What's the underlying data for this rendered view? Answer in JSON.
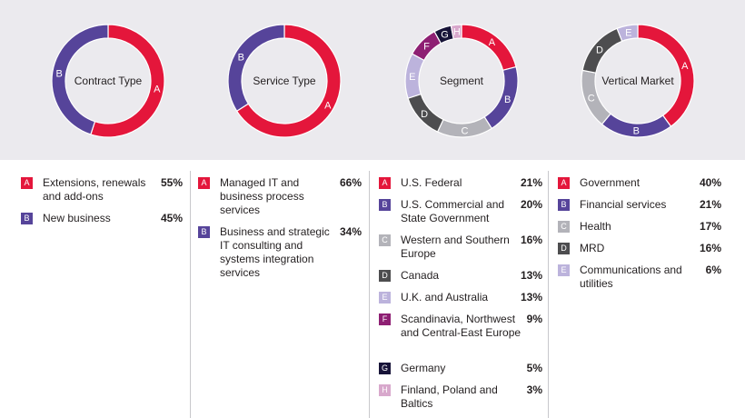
{
  "colors": {
    "A": "#e4163b",
    "B": "#56449a",
    "C": "#b3b3b9",
    "D": "#4d4d4f",
    "E": "#bcb3dc",
    "F": "#8e1f73",
    "G": "#171338",
    "H": "#d8a8cc"
  },
  "chart_data": [
    {
      "type": "pie",
      "title": "Contract Type",
      "slices": [
        {
          "code": "A",
          "label": "Extensions, renewals and add-ons",
          "value": 55,
          "pct": "55%"
        },
        {
          "code": "B",
          "label": "New business",
          "value": 45,
          "pct": "45%"
        }
      ]
    },
    {
      "type": "pie",
      "title": "Service Type",
      "slices": [
        {
          "code": "A",
          "label": "Managed IT and business process services",
          "value": 66,
          "pct": "66%"
        },
        {
          "code": "B",
          "label": "Business and strategic IT consulting and systems integration services",
          "value": 34,
          "pct": "34%"
        }
      ]
    },
    {
      "type": "pie",
      "title": "Segment",
      "slices": [
        {
          "code": "A",
          "label": "U.S. Federal",
          "value": 21,
          "pct": "21%"
        },
        {
          "code": "B",
          "label": "U.S. Commercial and State Government",
          "value": 20,
          "pct": "20%"
        },
        {
          "code": "C",
          "label": "Western and Southern Europe",
          "value": 16,
          "pct": "16%"
        },
        {
          "code": "D",
          "label": "Canada",
          "value": 13,
          "pct": "13%"
        },
        {
          "code": "E",
          "label": "U.K. and Australia",
          "value": 13,
          "pct": "13%"
        },
        {
          "code": "F",
          "label": "Scandinavia, Northwest and Central-East Europe",
          "value": 9,
          "pct": "9%"
        },
        {
          "code": "G",
          "label": "Germany",
          "value": 5,
          "pct": "5%"
        },
        {
          "code": "H",
          "label": "Finland, Poland and Baltics",
          "value": 3,
          "pct": "3%"
        }
      ]
    },
    {
      "type": "pie",
      "title": "Vertical Market",
      "slices": [
        {
          "code": "A",
          "label": "Government",
          "value": 40,
          "pct": "40%"
        },
        {
          "code": "B",
          "label": "Financial services",
          "value": 21,
          "pct": "21%"
        },
        {
          "code": "C",
          "label": "Health",
          "value": 17,
          "pct": "17%"
        },
        {
          "code": "D",
          "label": "MRD",
          "value": 16,
          "pct": "16%"
        },
        {
          "code": "E",
          "label": "Communications and utilities",
          "value": 6,
          "pct": "6%"
        }
      ]
    }
  ]
}
